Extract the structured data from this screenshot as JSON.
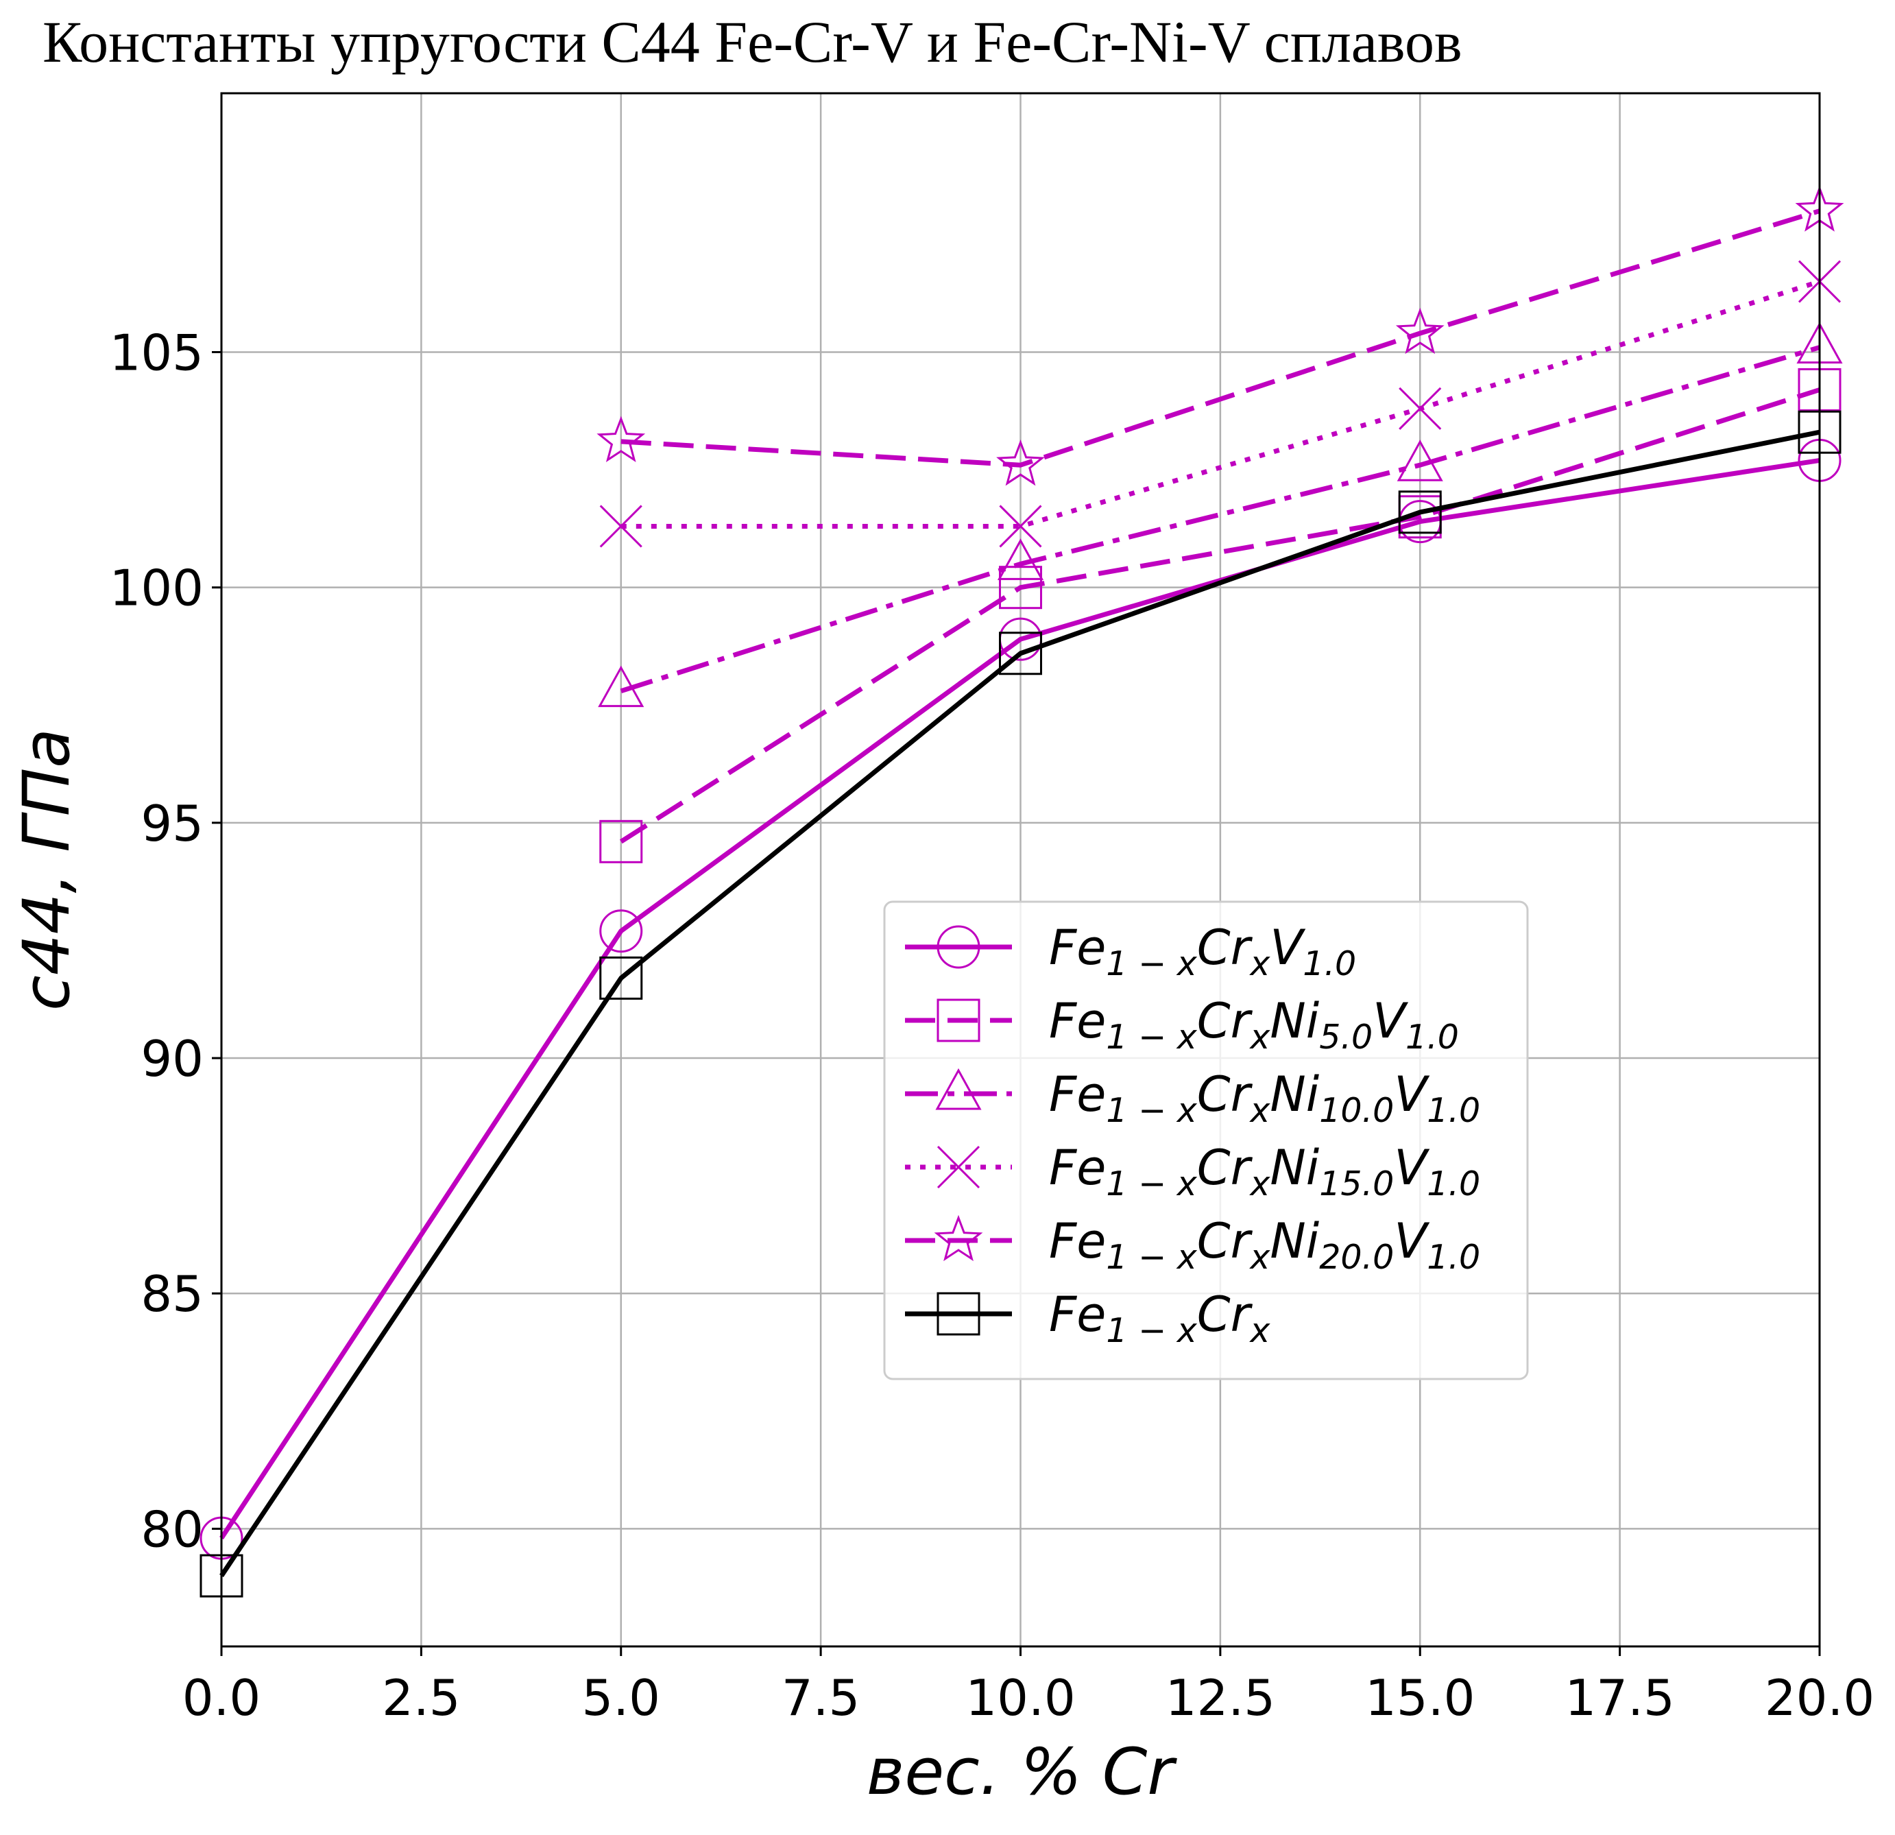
{
  "chart_data": {
    "type": "line",
    "title": "Константы упругости C44 Fe-Cr-V и Fe-Cr-Ni-V сплавов",
    "xlabel": "вес. % Cr",
    "ylabel": "c44, ГПа",
    "xlim": [
      0,
      20
    ],
    "ylim": [
      77.5,
      110.5
    ],
    "xticks": [
      "0.0",
      "2.5",
      "5.0",
      "7.5",
      "10.0",
      "12.5",
      "15.0",
      "17.5",
      "20.0"
    ],
    "yticks": [
      "80",
      "85",
      "90",
      "95",
      "100",
      "105"
    ],
    "grid": true,
    "legend_position": "center-right",
    "series": [
      {
        "name": "Fe1−xCrxV1.0",
        "color": "#BF00BF",
        "linestyle": "solid",
        "marker": "circle",
        "x": [
          0,
          5,
          10,
          15,
          20
        ],
        "y": [
          79.8,
          92.7,
          98.9,
          101.4,
          102.7
        ]
      },
      {
        "name": "Fe1−xCrxNi5.0V1.0",
        "color": "#BF00BF",
        "linestyle": "dashed",
        "marker": "square",
        "x": [
          5,
          10,
          15,
          20
        ],
        "y": [
          94.6,
          100.0,
          101.5,
          104.2
        ]
      },
      {
        "name": "Fe1−xCrxNi10.0V1.0",
        "color": "#BF00BF",
        "linestyle": "dashdot",
        "marker": "triangle",
        "x": [
          5,
          10,
          15,
          20
        ],
        "y": [
          97.8,
          100.5,
          102.6,
          105.1
        ]
      },
      {
        "name": "Fe1−xCrxNi15.0V1.0",
        "color": "#BF00BF",
        "linestyle": "dotted",
        "marker": "x",
        "x": [
          5,
          10,
          15,
          20
        ],
        "y": [
          101.3,
          101.3,
          103.8,
          106.5
        ]
      },
      {
        "name": "Fe1−xCrxNi20.0V1.0",
        "color": "#BF00BF",
        "linestyle": "dashed",
        "marker": "star",
        "x": [
          5,
          10,
          15,
          20
        ],
        "y": [
          103.1,
          102.6,
          105.4,
          108.0
        ]
      },
      {
        "name": "Fe1−xCrx",
        "color": "#000000",
        "linestyle": "solid",
        "marker": "square",
        "x": [
          0,
          5,
          10,
          15,
          20
        ],
        "y": [
          79.0,
          91.7,
          98.6,
          101.6,
          103.3
        ]
      }
    ],
    "legend": {
      "entries": [
        {
          "base": "Fe",
          "s1": "1 − x",
          "m1": "Cr",
          "s2": "x",
          "m2": "V",
          "s3": "1.0",
          "m3": "",
          "s4": ""
        },
        {
          "base": "Fe",
          "s1": "1 − x",
          "m1": "Cr",
          "s2": "x",
          "m2": "Ni",
          "s3": "5.0",
          "m3": "V",
          "s4": "1.0"
        },
        {
          "base": "Fe",
          "s1": "1 − x",
          "m1": "Cr",
          "s2": "x",
          "m2": "Ni",
          "s3": "10.0",
          "m3": "V",
          "s4": "1.0"
        },
        {
          "base": "Fe",
          "s1": "1 − x",
          "m1": "Cr",
          "s2": "x",
          "m2": "Ni",
          "s3": "15.0",
          "m3": "V",
          "s4": "1.0"
        },
        {
          "base": "Fe",
          "s1": "1 − x",
          "m1": "Cr",
          "s2": "x",
          "m2": "Ni",
          "s3": "20.0",
          "m3": "V",
          "s4": "1.0"
        },
        {
          "base": "Fe",
          "s1": "1 − x",
          "m1": "Cr",
          "s2": "x",
          "m2": "",
          "s3": "",
          "m3": "",
          "s4": ""
        }
      ]
    }
  }
}
